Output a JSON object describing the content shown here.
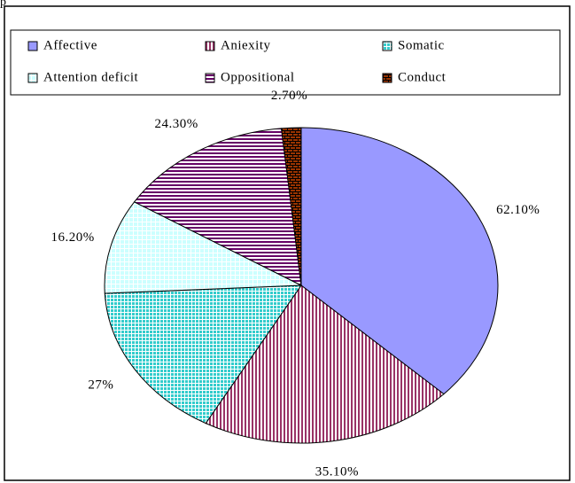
{
  "fragment": "p",
  "chart_data": {
    "type": "pie",
    "categories": [
      "Affective",
      "Aniexity",
      "Somatic",
      "Attention deficit",
      "Oppositional",
      "Conduct"
    ],
    "values": [
      62.1,
      35.1,
      27,
      16.2,
      24.3,
      2.7
    ],
    "value_labels": [
      "62.10%",
      "35.10%",
      "27%",
      "16.20%",
      "24.30%",
      "2.70%"
    ],
    "colors": [
      "#9999ff",
      "#993366",
      "#33cccc",
      "#ccffff",
      "#660066",
      "#993300"
    ],
    "legend": "top"
  }
}
